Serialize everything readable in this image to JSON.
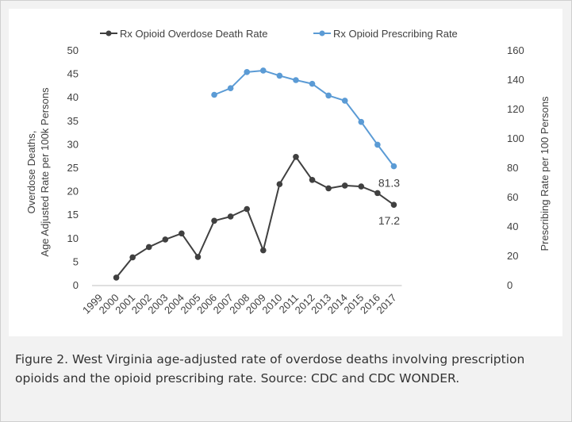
{
  "caption": "Figure 2. West Virginia age-adjusted rate of overdose deaths involving prescription opioids and the opioid prescribing rate. Source: CDC and CDC WONDER.",
  "chart_data": {
    "type": "line",
    "title": "",
    "categories": [
      "1999",
      "2000",
      "2001",
      "2002",
      "2003",
      "2004",
      "2005",
      "2006",
      "2007",
      "2008",
      "2009",
      "2010",
      "2011",
      "2012",
      "2013",
      "2014",
      "2015",
      "2016",
      "2017"
    ],
    "ylabel_left": [
      "Overdose Deaths,",
      "Age Adjusted Rate per 100k Persons"
    ],
    "ylabel_right": "Prescribing Rate per 100 Persons",
    "ylim_left": [
      0,
      50
    ],
    "yticks_left": [
      0,
      5,
      10,
      15,
      20,
      25,
      30,
      35,
      40,
      45,
      50
    ],
    "ylim_right": [
      0,
      160
    ],
    "yticks_right": [
      0,
      20,
      40,
      60,
      80,
      100,
      120,
      140,
      160
    ],
    "legend_position": "top",
    "grid": false,
    "series": [
      {
        "name": "Rx Opioid Overdose Death Rate",
        "axis": "left",
        "color": "#404040",
        "values": [
          null,
          1.7,
          6.0,
          8.2,
          9.8,
          11.1,
          6.1,
          13.8,
          14.7,
          16.3,
          7.5,
          21.6,
          27.4,
          22.5,
          20.7,
          21.3,
          21.1,
          19.7,
          17.2
        ],
        "end_label": "17.2"
      },
      {
        "name": "Rx Opioid Prescribing Rate",
        "axis": "right",
        "color": "#5b9bd5",
        "values": [
          null,
          null,
          null,
          null,
          null,
          null,
          null,
          130.0,
          134.5,
          145.5,
          146.5,
          143.0,
          140.0,
          137.5,
          129.5,
          126.0,
          111.5,
          96.0,
          81.3
        ],
        "end_label": "81.3"
      }
    ]
  }
}
